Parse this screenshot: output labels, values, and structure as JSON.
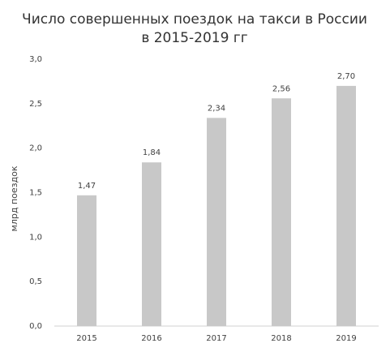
{
  "chart_data": {
    "type": "bar",
    "title": [
      "Число совершенных поездок на такси в России",
      "в 2015-2019 гг"
    ],
    "y_label": "млрд поездок",
    "categories": [
      "2015",
      "2016",
      "2017",
      "2018",
      "2019"
    ],
    "values": [
      1.47,
      1.84,
      2.34,
      2.56,
      2.7
    ],
    "value_labels": [
      "1,47",
      "1,84",
      "2,34",
      "2,56",
      "2,70"
    ],
    "color": "#c8c8c8",
    "ylim": [
      0,
      3
    ],
    "yticks": [
      {
        "value": 0,
        "label": "0,0"
      },
      {
        "value": 0.5,
        "label": "0,5"
      },
      {
        "value": 1,
        "label": "1,0"
      },
      {
        "value": 1.5,
        "label": "1,5"
      },
      {
        "value": 2,
        "label": "2,0"
      },
      {
        "value": 2.5,
        "label": "2,5"
      },
      {
        "value": 3,
        "label": "3,0"
      }
    ],
    "grid": false
  }
}
